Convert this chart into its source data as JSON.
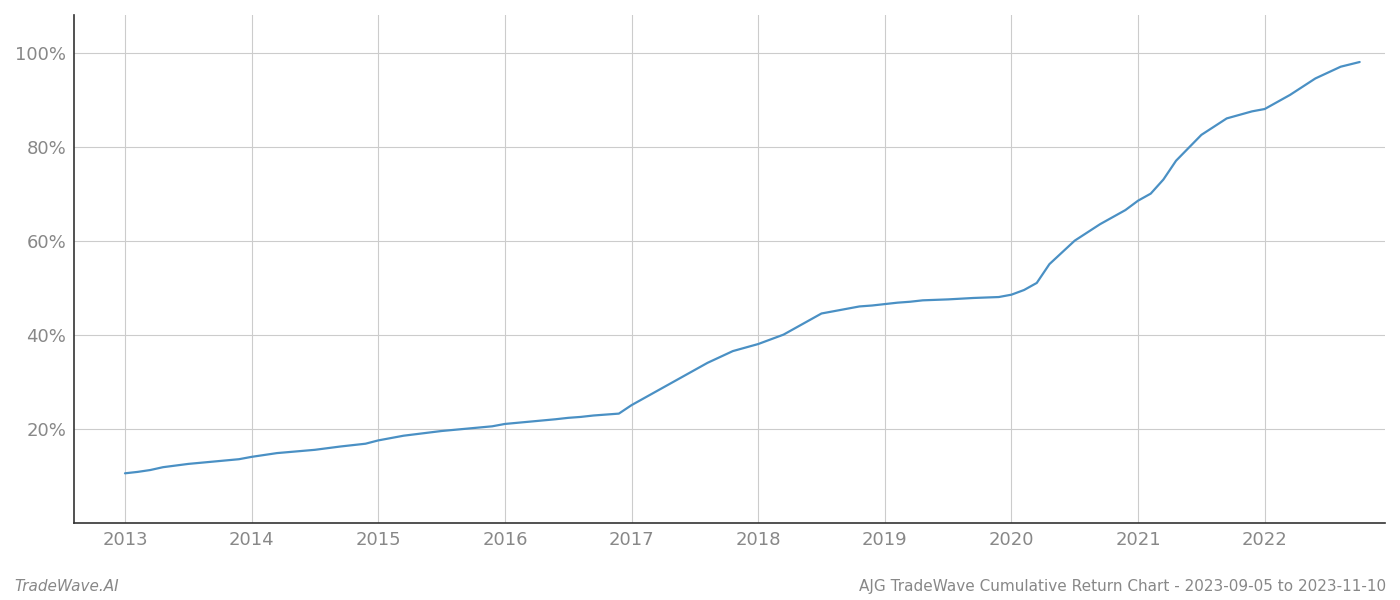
{
  "title": "",
  "footer_left": "TradeWave.AI",
  "footer_right": "AJG TradeWave Cumulative Return Chart - 2023-09-05 to 2023-11-10",
  "line_color": "#4a90c4",
  "line_width": 1.6,
  "background_color": "#ffffff",
  "grid_color": "#cccccc",
  "x_years": [
    2013.0,
    2013.1,
    2013.2,
    2013.3,
    2013.5,
    2013.7,
    2013.9,
    2014.0,
    2014.2,
    2014.5,
    2014.7,
    2014.9,
    2015.0,
    2015.2,
    2015.5,
    2015.7,
    2015.9,
    2016.0,
    2016.2,
    2016.4,
    2016.5,
    2016.6,
    2016.7,
    2016.8,
    2016.9,
    2017.0,
    2017.2,
    2017.4,
    2017.6,
    2017.8,
    2018.0,
    2018.2,
    2018.4,
    2018.5,
    2018.6,
    2018.7,
    2018.8,
    2018.9,
    2019.0,
    2019.1,
    2019.2,
    2019.3,
    2019.5,
    2019.7,
    2019.9,
    2020.0,
    2020.1,
    2020.2,
    2020.3,
    2020.5,
    2020.7,
    2020.9,
    2021.0,
    2021.1,
    2021.2,
    2021.3,
    2021.5,
    2021.7,
    2021.9,
    2022.0,
    2022.2,
    2022.4,
    2022.6,
    2022.75
  ],
  "y_values": [
    10.5,
    10.8,
    11.2,
    11.8,
    12.5,
    13.0,
    13.5,
    14.0,
    14.8,
    15.5,
    16.2,
    16.8,
    17.5,
    18.5,
    19.5,
    20.0,
    20.5,
    21.0,
    21.5,
    22.0,
    22.3,
    22.5,
    22.8,
    23.0,
    23.2,
    25.0,
    28.0,
    31.0,
    34.0,
    36.5,
    38.0,
    40.0,
    43.0,
    44.5,
    45.0,
    45.5,
    46.0,
    46.2,
    46.5,
    46.8,
    47.0,
    47.3,
    47.5,
    47.8,
    48.0,
    48.5,
    49.5,
    51.0,
    55.0,
    60.0,
    63.5,
    66.5,
    68.5,
    70.0,
    73.0,
    77.0,
    82.5,
    86.0,
    87.5,
    88.0,
    91.0,
    94.5,
    97.0,
    98.0
  ],
  "ytick_values": [
    20,
    40,
    60,
    80,
    100
  ],
  "ytick_labels": [
    "20%",
    "40%",
    "60%",
    "80%",
    "100%"
  ],
  "xtick_values": [
    2013,
    2014,
    2015,
    2016,
    2017,
    2018,
    2019,
    2020,
    2021,
    2022
  ],
  "xlim": [
    2012.6,
    2022.95
  ],
  "ylim": [
    0,
    108
  ],
  "ylabel_fontsize": 13,
  "xlabel_fontsize": 13,
  "footer_fontsize": 11,
  "spine_color": "#333333",
  "tick_label_color": "#888888"
}
